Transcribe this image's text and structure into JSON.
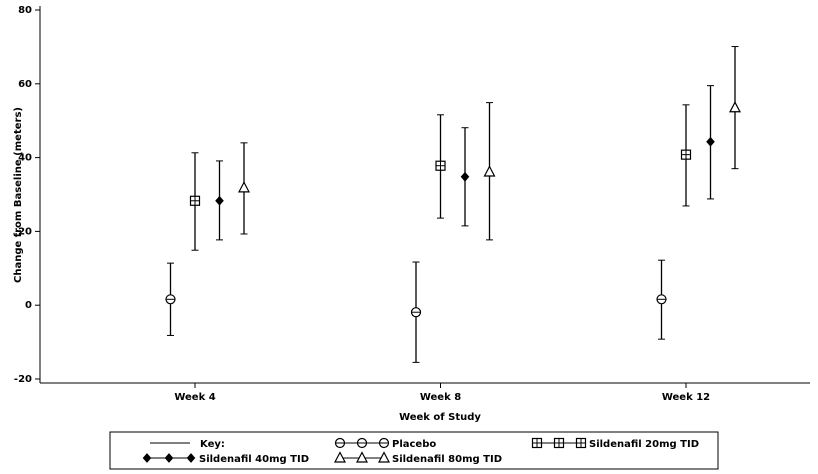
{
  "chart_data": {
    "type": "errorbar",
    "y_label": "Change from Baseline (meters)",
    "x_label": "Week of Study",
    "categories": [
      "Week 4",
      "Week 8",
      "Week 12"
    ],
    "ylim": [
      -20,
      80
    ],
    "yticks": [
      -20,
      0,
      20,
      40,
      60,
      80
    ],
    "legend_title": "Key:",
    "series": [
      {
        "name": "Placebo",
        "marker": "circle",
        "color": "#000000",
        "values": [
          1.6,
          -1.9,
          1.6
        ],
        "ci_low": [
          -8.2,
          -15.5,
          -9.2
        ],
        "ci_high": [
          11.4,
          11.7,
          12.2
        ]
      },
      {
        "name": "Sildenafil 20mg TID",
        "marker": "square",
        "color": "#000000",
        "values": [
          28.3,
          37.8,
          40.8
        ],
        "ci_low": [
          14.9,
          23.6,
          26.9
        ],
        "ci_high": [
          41.3,
          51.6,
          54.3
        ]
      },
      {
        "name": "Sildenafil 40mg TID",
        "marker": "diamond",
        "color": "#000000",
        "values": [
          28.3,
          34.8,
          44.3
        ],
        "ci_low": [
          17.7,
          21.5,
          28.8
        ],
        "ci_high": [
          39.1,
          48.1,
          59.5
        ]
      },
      {
        "name": "Sildenafil 80mg TID",
        "marker": "triangle",
        "color": "#000000",
        "values": [
          31.8,
          36.1,
          53.5
        ],
        "ci_low": [
          19.3,
          17.7,
          37.0
        ],
        "ci_high": [
          44.0,
          54.9,
          70.1
        ]
      }
    ]
  }
}
